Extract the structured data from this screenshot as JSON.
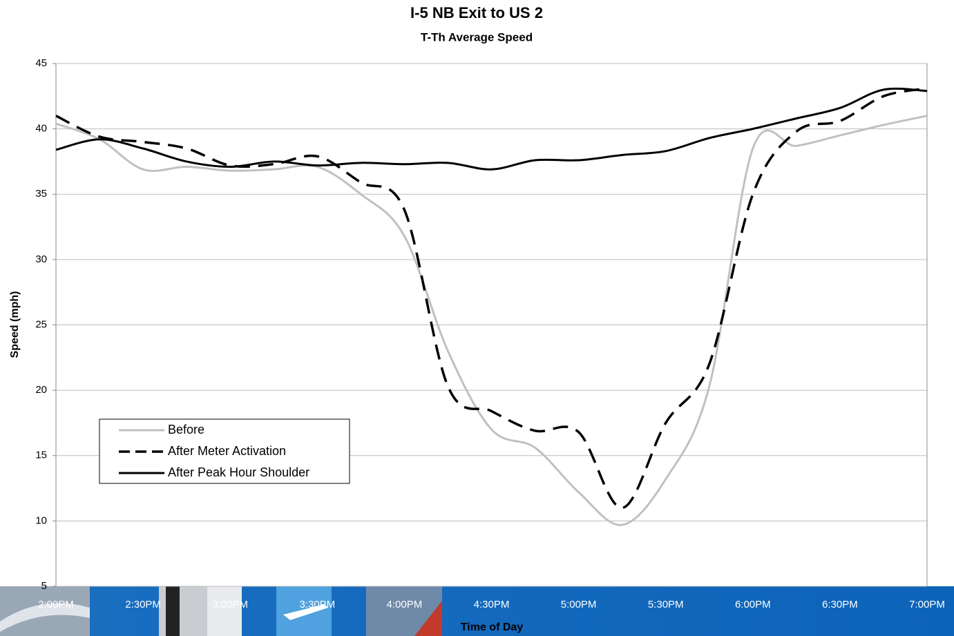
{
  "chart_data": {
    "type": "line",
    "title": "I-5 NB Exit to US 2",
    "subtitle": "T-Th Average Speed",
    "x_label": "Time of Day",
    "y_label": "Speed (mph)",
    "categories": [
      "2:00PM",
      null,
      "2:30PM",
      null,
      "3:00PM",
      null,
      "3:30PM",
      null,
      "4:00PM",
      null,
      "4:30PM",
      null,
      "5:00PM",
      null,
      "5:30PM",
      null,
      "6:00PM",
      null,
      "6:30PM",
      null,
      "7:00PM"
    ],
    "series": [
      {
        "name": "Before",
        "color": "#c0c0c0",
        "line_style": "solid",
        "values": [
          40.4,
          39.2,
          36.9,
          37.1,
          36.8,
          36.9,
          37.1,
          35.0,
          31.8,
          23.0,
          17.0,
          15.6,
          12.2,
          9.7,
          13.2,
          20.3,
          38.5,
          38.7,
          39.5,
          40.3,
          41.0
        ]
      },
      {
        "name": "After Meter Activation",
        "color": "#000000",
        "line_style": "dashed",
        "values": [
          41.0,
          39.4,
          39.0,
          38.5,
          37.2,
          37.3,
          37.9,
          35.9,
          33.8,
          20.3,
          18.4,
          16.9,
          16.8,
          11.0,
          17.5,
          22.0,
          35.0,
          39.8,
          40.6,
          42.5,
          43.1
        ]
      },
      {
        "name": "After Peak Hour Shoulder",
        "color": "#000000",
        "line_style": "solid",
        "values": [
          38.4,
          39.2,
          38.5,
          37.5,
          37.1,
          37.5,
          37.2,
          37.4,
          37.3,
          37.4,
          36.9,
          37.6,
          37.6,
          38.0,
          38.3,
          39.3,
          40.0,
          40.8,
          41.6,
          43.0,
          42.9
        ]
      }
    ],
    "ylim": [
      5,
      45
    ],
    "yticks": [
      5,
      10,
      15,
      20,
      25,
      30,
      35,
      40,
      45
    ],
    "grid": true,
    "legend": "lower left"
  }
}
